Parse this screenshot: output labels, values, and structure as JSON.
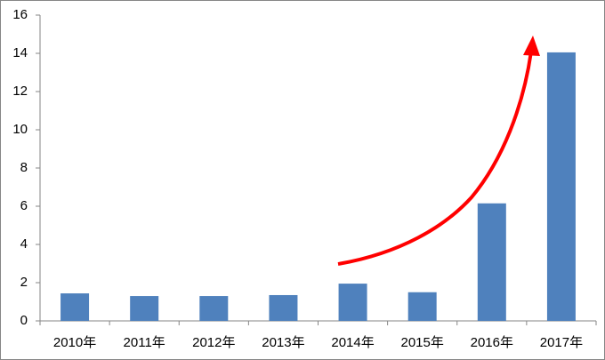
{
  "chart_data": {
    "type": "bar",
    "categories": [
      "2010年",
      "2011年",
      "2012年",
      "2013年",
      "2014年",
      "2015年",
      "2016年",
      "2017年"
    ],
    "values": [
      1.44,
      1.3,
      1.3,
      1.35,
      1.95,
      1.5,
      6.15,
      14.05
    ],
    "color": "#4f81bd",
    "ylim": [
      0,
      16
    ],
    "yticks": [
      0,
      2,
      4,
      6,
      8,
      10,
      12,
      14,
      16
    ],
    "grid": false
  }
}
